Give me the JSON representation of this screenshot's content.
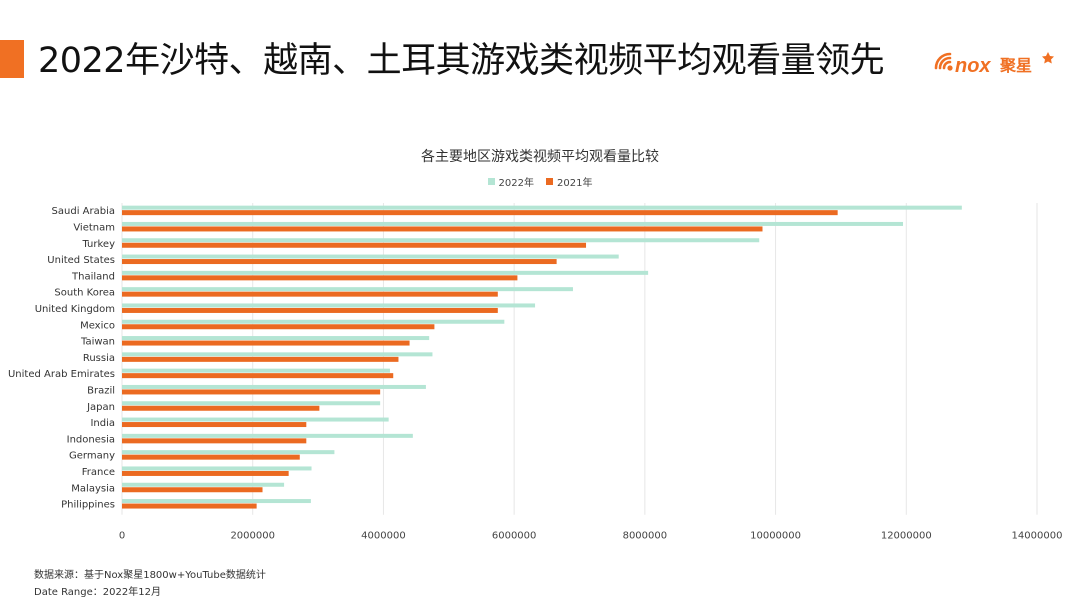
{
  "slide": {
    "title": "2022年沙特、越南、土耳其游戏类视频平均观看量领先",
    "logo_text": "nox",
    "logo_cn": "聚星",
    "footer_source": "数据来源：基于Nox聚星1800w+YouTube数据统计",
    "footer_range": "Date Range：2022年12月",
    "accent_color": "#f07023"
  },
  "chart_data": {
    "type": "bar",
    "orientation": "horizontal",
    "title": "各主要地区游戏类视频平均观看量比较",
    "xlim": [
      0,
      14000000
    ],
    "xticks": [
      "0",
      "2000000",
      "4000000",
      "6000000",
      "8000000",
      "10000000",
      "12000000",
      "14000000"
    ],
    "grid": true,
    "legend_position": "top-center",
    "categories": [
      "Saudi Arabia",
      "Vietnam",
      "Turkey",
      "United States",
      "Thailand",
      "South Korea",
      "United Kingdom",
      "Mexico",
      "Taiwan",
      "Russia",
      "United Arab Emirates",
      "Brazil",
      "Japan",
      "India",
      "Indonesia",
      "Germany",
      "France",
      "Malaysia",
      "Philippines"
    ],
    "series": [
      {
        "name": "2022年",
        "color": "#b4e5d4",
        "values": [
          12850000,
          11950000,
          9750000,
          7600000,
          8050000,
          6900000,
          6320000,
          5850000,
          4700000,
          4750000,
          4100000,
          4650000,
          3950000,
          4080000,
          4450000,
          3250000,
          2900000,
          2480000,
          2890000
        ]
      },
      {
        "name": "2021年",
        "color": "#eb6a21",
        "values": [
          10950000,
          9800000,
          7100000,
          6650000,
          6050000,
          5750000,
          5750000,
          4780000,
          4400000,
          4230000,
          4150000,
          3950000,
          3020000,
          2820000,
          2820000,
          2720000,
          2550000,
          2150000,
          2060000
        ]
      }
    ]
  }
}
